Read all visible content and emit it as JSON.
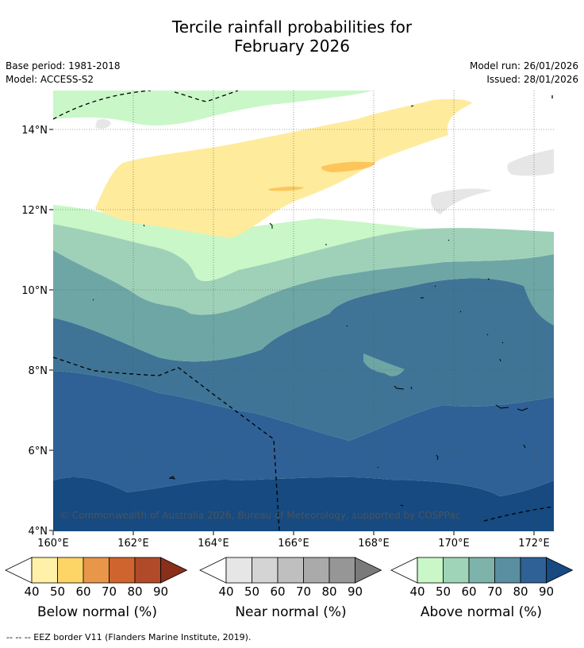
{
  "title_line1": "Tercile rainfall probabilities for",
  "title_line2": "February 2026",
  "base_period": "Base period: 1981-2018",
  "model": "Model: ACCESS-S2",
  "model_run": "Model run: 26/01/2026",
  "issued": "Issued: 28/01/2026",
  "copyright": "© Commonwealth of Australia 2026, Bureau of Meteorology, supported by COSPPac",
  "map": {
    "lon_labels": [
      "160°E",
      "162°E",
      "164°E",
      "166°E",
      "168°E",
      "170°E",
      "172°E"
    ],
    "lat_labels": [
      "14°N",
      "12°N",
      "10°N",
      "8°N",
      "6°N",
      "4°N"
    ]
  },
  "colorbars": [
    {
      "name": "below",
      "label": "Below normal (%)",
      "ticks": [
        "40",
        "50",
        "60",
        "70",
        "80",
        "90"
      ],
      "colors": [
        "#fff1a8",
        "#fdd466",
        "#e8964a",
        "#d0642f",
        "#b04a28",
        "#8a2f1a"
      ],
      "under": "#ffffff"
    },
    {
      "name": "near",
      "label": "Near normal (%)",
      "ticks": [
        "40",
        "50",
        "60",
        "70",
        "80",
        "90"
      ],
      "colors": [
        "#e6e6e6",
        "#d4d4d4",
        "#bfbfbf",
        "#aaaaaa",
        "#969696",
        "#7a7a7a"
      ],
      "under": "#ffffff"
    },
    {
      "name": "above",
      "label": "Above normal (%)",
      "ticks": [
        "40",
        "50",
        "60",
        "70",
        "80",
        "90"
      ],
      "colors": [
        "#c9f7c8",
        "#9fd4b8",
        "#7db3aa",
        "#5a8fa0",
        "#2f6196",
        "#164a80"
      ],
      "under": "#ffffff"
    }
  ],
  "footer": "--  --  -- EEZ border V11 (Flanders Marine Institute, 2019)."
}
